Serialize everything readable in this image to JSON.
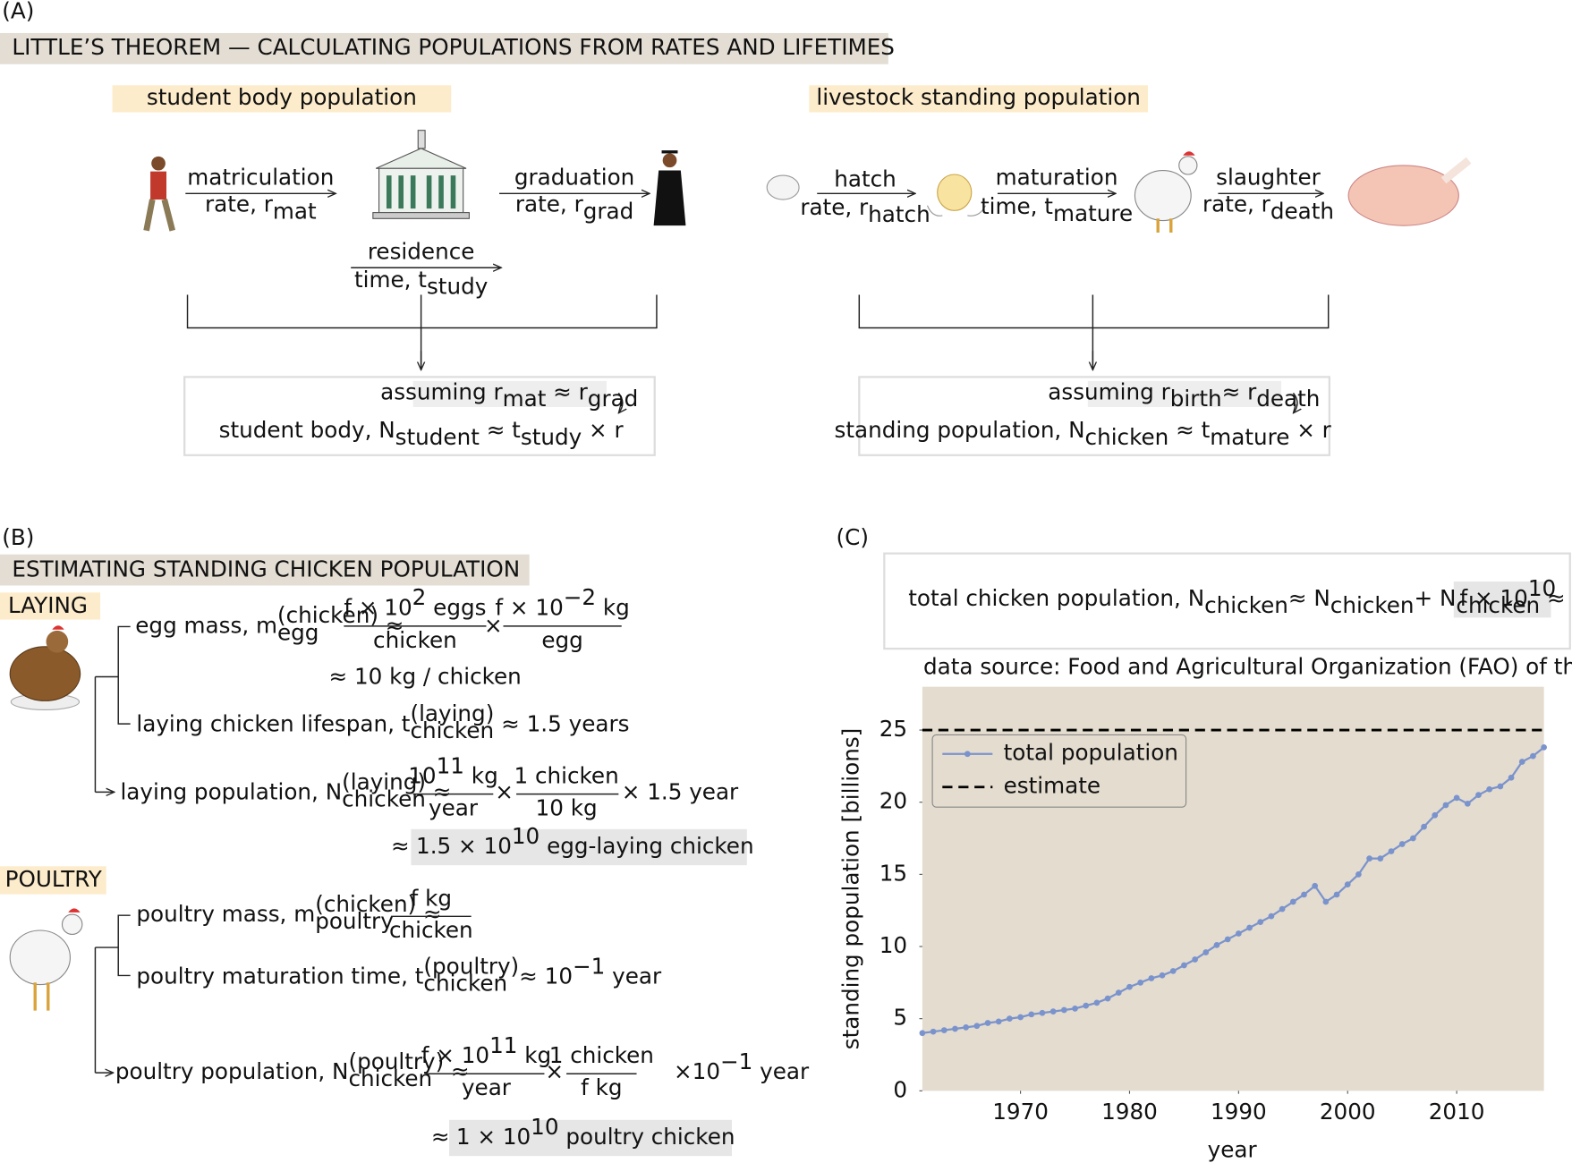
{
  "panel_a": {
    "label": "(A)",
    "title": "LITTLE’S THEOREM — CALCULATING POPULATIONS FROM RATES AND LIFETIMES",
    "student": {
      "heading": "student body population",
      "matriculation": {
        "name": "matriculation",
        "rate": [
          "rate, r",
          "mat"
        ]
      },
      "graduation": {
        "name": "graduation",
        "rate": [
          "rate, r",
          "grad"
        ]
      },
      "residence": {
        "name": "residence",
        "time": [
          "time, t",
          "study"
        ]
      },
      "assumption": [
        "assuming r",
        "mat",
        " ≈ r",
        "grad"
      ],
      "result": [
        "student body, N",
        "student",
        " ≈ t",
        "study",
        " × r"
      ]
    },
    "livestock": {
      "heading": "livestock standing population",
      "hatch": {
        "name": "hatch",
        "rate": [
          "rate, r",
          "hatch"
        ]
      },
      "maturation": {
        "name": "maturation",
        "time": [
          "time, t",
          "mature"
        ]
      },
      "slaughter": {
        "name": "slaughter",
        "rate": [
          "rate, r",
          "death"
        ]
      },
      "assumption": [
        "assuming r",
        "birth",
        "≈ r",
        "death"
      ],
      "result": [
        "standing population, N",
        "chicken",
        " ≈ t",
        "mature",
        " × r"
      ]
    }
  },
  "panel_b": {
    "label": "(B)",
    "title": "ESTIMATING STANDING CHICKEN POPULATION",
    "laying": {
      "heading": "LAYING",
      "egg_mass": {
        "label": [
          "egg mass, m",
          "(chicken)",
          "egg",
          " ≈"
        ],
        "eggs_per_chicken": {
          "num": [
            "f × 10",
            "2",
            " eggs"
          ],
          "den": "chicken"
        },
        "times": "×",
        "mass_per_egg": {
          "num": [
            "f × 10",
            "−2",
            " kg"
          ],
          "den": "egg"
        },
        "result": "≈ 10 kg / chicken"
      },
      "lifespan": [
        "laying chicken lifespan, t",
        "(laying)",
        "chicken",
        " ≈ 1.5 years"
      ],
      "population": {
        "label": [
          "laying population, N",
          "(laying)",
          "chicken",
          " ≈"
        ],
        "rate": {
          "num": [
            "10",
            "11",
            " kg"
          ],
          "den": "year"
        },
        "times": "×",
        "per_mass": {
          "num": "1 chicken",
          "den": "10 kg"
        },
        "lifetime": "× 1.5 year",
        "result": {
          "approx": "≈",
          "value": [
            "1.5 × 10",
            "10",
            " egg-laying chicken"
          ]
        }
      }
    },
    "poultry": {
      "heading": "POULTRY",
      "mass": {
        "label": [
          "poultry mass, m",
          "(chicken)",
          "poultry",
          " ≈"
        ],
        "value": {
          "num": "f kg",
          "den": "chicken"
        }
      },
      "maturation": [
        "poultry maturation time, t",
        "(poultry)",
        "chicken",
        "≈ 10",
        "−1",
        " year"
      ],
      "population": {
        "label": [
          "poultry population, N",
          "(poultry)",
          "chicken",
          " ≈"
        ],
        "rate": {
          "num": [
            "f × 10",
            "11",
            " kg"
          ],
          "den": "year"
        },
        "times": "×",
        "per_mass": {
          "num": "1 chicken",
          "den": "f kg"
        },
        "lifetime": [
          "×10",
          "−1",
          " year"
        ],
        "result": {
          "approx": "≈",
          "value": [
            "1 × 10",
            "10",
            " poultry chicken"
          ]
        }
      }
    }
  },
  "panel_c": {
    "label": "(C)",
    "equation": [
      "total chicken population, N",
      "chicken",
      "≈ N",
      "chicken",
      "+ N",
      "chicken",
      " ≈ "
    ],
    "estimate": [
      "f × 10",
      "10"
    ],
    "source": "data source: Food and Agricultural Organization (FAO) of the UN"
  },
  "chart_data": {
    "type": "line",
    "xlabel": "year",
    "ylabel": "standing population [billions]",
    "x": [
      1961,
      1962,
      1963,
      1964,
      1965,
      1966,
      1967,
      1968,
      1969,
      1970,
      1971,
      1972,
      1973,
      1974,
      1975,
      1976,
      1977,
      1978,
      1979,
      1980,
      1981,
      1982,
      1983,
      1984,
      1985,
      1986,
      1987,
      1988,
      1989,
      1990,
      1991,
      1992,
      1993,
      1994,
      1995,
      1996,
      1997,
      1998,
      1999,
      2000,
      2001,
      2002,
      2003,
      2004,
      2005,
      2006,
      2007,
      2008,
      2009,
      2010,
      2011,
      2012,
      2013,
      2014,
      2015,
      2016,
      2017,
      2018
    ],
    "series": [
      {
        "name": "total population",
        "color": "#7b93cc",
        "values": [
          4.0,
          4.1,
          4.2,
          4.3,
          4.4,
          4.5,
          4.7,
          4.8,
          5.0,
          5.1,
          5.3,
          5.4,
          5.5,
          5.6,
          5.7,
          5.9,
          6.1,
          6.4,
          6.8,
          7.2,
          7.5,
          7.8,
          8.0,
          8.3,
          8.7,
          9.1,
          9.6,
          10.1,
          10.5,
          10.9,
          11.3,
          11.7,
          12.1,
          12.6,
          13.1,
          13.6,
          14.2,
          13.1,
          13.6,
          14.3,
          15.0,
          16.1,
          16.1,
          16.6,
          17.1,
          17.5,
          18.3,
          19.1,
          19.8,
          20.3,
          19.9,
          20.5,
          20.9,
          21.1,
          21.7,
          22.8,
          23.2,
          23.8
        ]
      }
    ],
    "reference_lines": [
      {
        "name": "estimate",
        "value": 25,
        "color": "#000000",
        "style": "dashed"
      }
    ],
    "xlim": [
      1961,
      2018
    ],
    "ylim": [
      0,
      28
    ],
    "xticks": [
      1970,
      1980,
      1990,
      2000,
      2010
    ],
    "yticks": [
      0,
      5,
      10,
      15,
      20,
      25
    ],
    "grid": false,
    "legend": "upper left",
    "background": "#e3dccf"
  }
}
